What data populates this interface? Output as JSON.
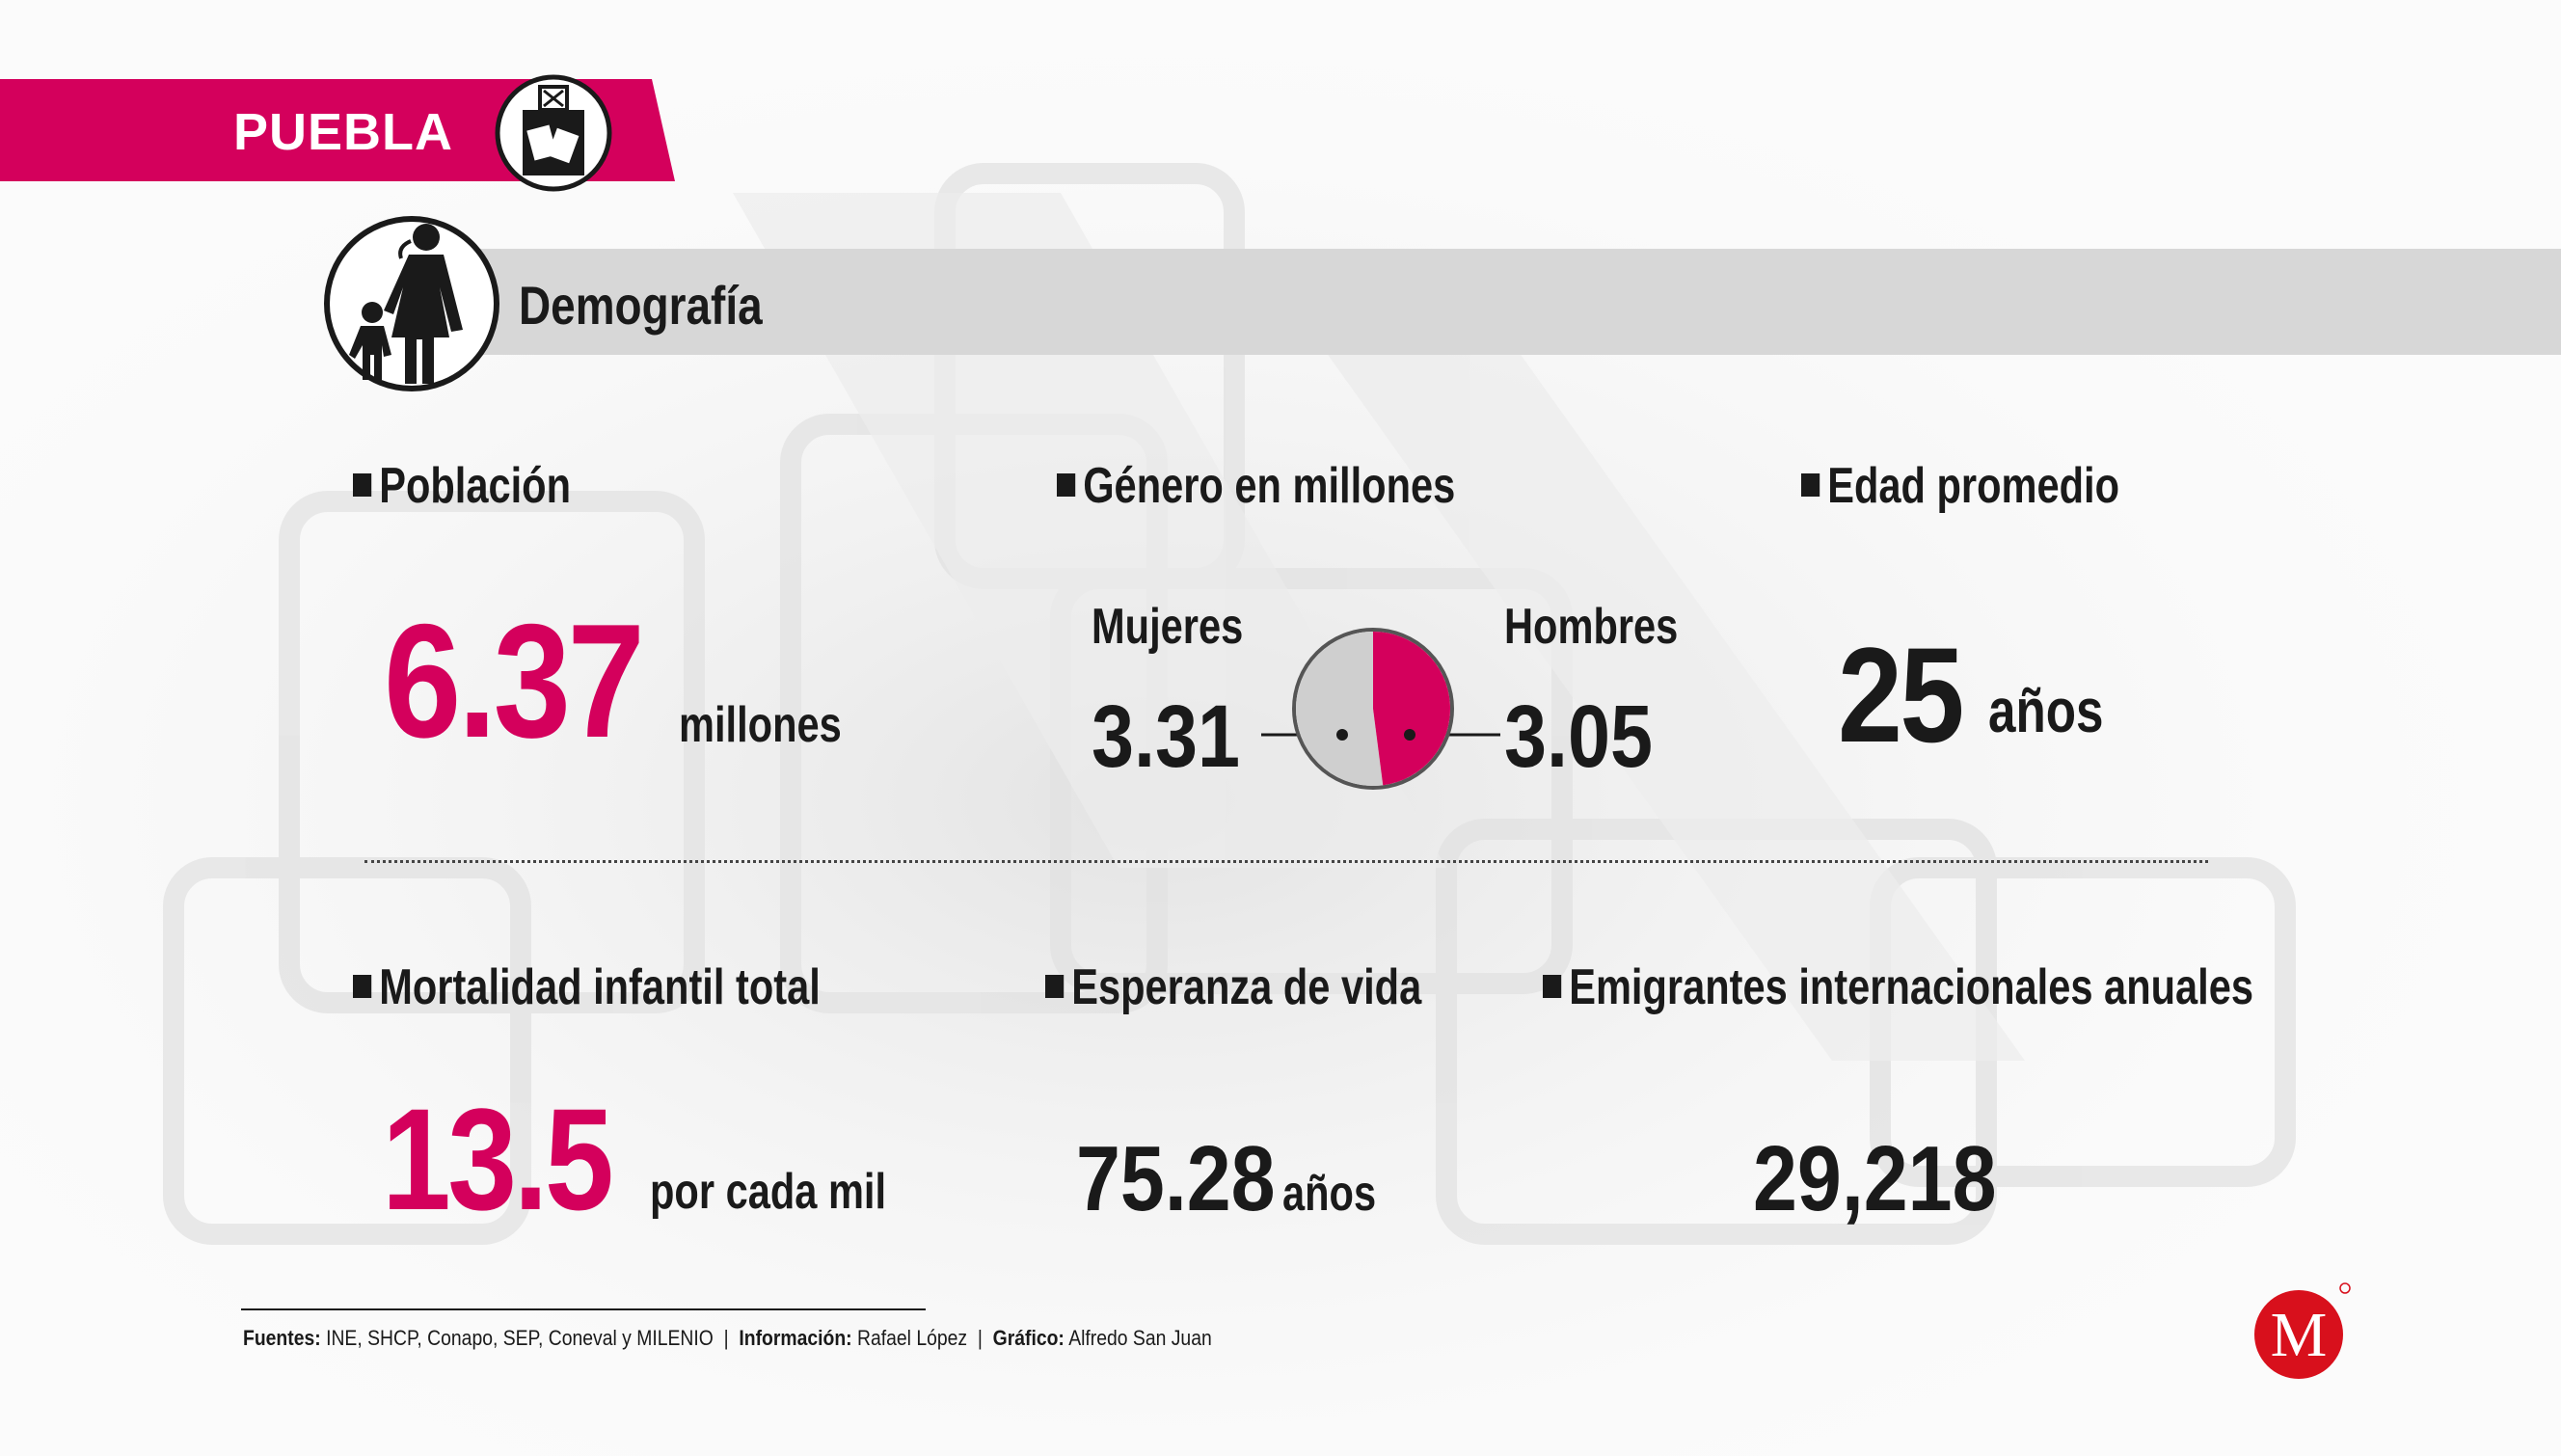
{
  "header": {
    "state": "PUEBLA"
  },
  "section": {
    "title": "Demografía"
  },
  "colors": {
    "accent": "#d4005c",
    "women": "#cfcfcf",
    "men": "#d4005c",
    "text": "#1a1a1a"
  },
  "population": {
    "label": "Población",
    "value": "6.37",
    "unit": "millones"
  },
  "gender": {
    "label": "Género en millones"
  },
  "median_age": {
    "label": "Edad promedio",
    "value": "25",
    "unit": "años"
  },
  "infant_mortality": {
    "label": "Mortalidad infantil total",
    "value": "13.5",
    "unit": "por cada mil"
  },
  "life_expectancy": {
    "label": "Esperanza de vida",
    "value": "75.28",
    "unit": "años"
  },
  "emigrants": {
    "label": "Emigrantes internacionales anuales",
    "value": "29,218"
  },
  "chart_data": {
    "type": "pie",
    "categories": [
      "Mujeres",
      "Hombres"
    ],
    "values": [
      "3.31",
      "3.05"
    ],
    "colors": [
      "#cfcfcf",
      "#d4005c"
    ]
  },
  "footer": {
    "sources_label": "Fuentes:",
    "sources": "INE, SHCP, Conapo, SEP, Coneval y MILENIO",
    "info_label": "Información:",
    "info": "Rafael López",
    "graphic_label": "Gráfico:",
    "graphic": "Alfredo San Juan"
  }
}
